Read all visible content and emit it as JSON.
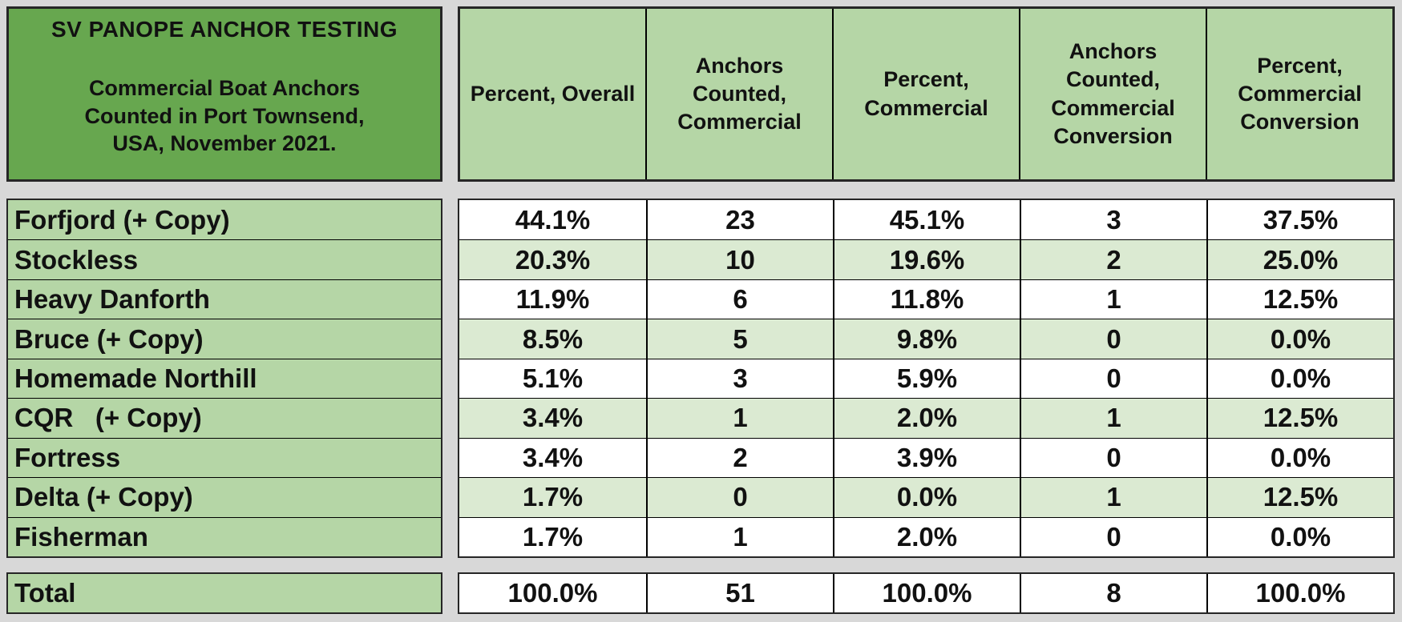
{
  "chart_data": {
    "type": "table",
    "title": "SV PANOPE ANCHOR TESTING",
    "subtitle_lines": [
      "Commercial Boat Anchors",
      "Counted in Port Townsend,",
      "USA, November 2021."
    ],
    "columns": [
      "Percent, Overall",
      "Anchors Counted, Commercial",
      "Percent, Commercial",
      "Anchors Counted, Commercial Conversion",
      "Percent, Commercial Conversion"
    ],
    "rows": [
      {
        "label": "Forfjord (+ Copy)",
        "values": [
          "44.1%",
          "23",
          "45.1%",
          "3",
          "37.5%"
        ]
      },
      {
        "label": "Stockless",
        "values": [
          "20.3%",
          "10",
          "19.6%",
          "2",
          "25.0%"
        ]
      },
      {
        "label": "Heavy Danforth",
        "values": [
          "11.9%",
          "6",
          "11.8%",
          "1",
          "12.5%"
        ]
      },
      {
        "label": "Bruce (+ Copy)",
        "values": [
          "8.5%",
          "5",
          "9.8%",
          "0",
          "0.0%"
        ]
      },
      {
        "label": "Homemade Northill",
        "values": [
          "5.1%",
          "3",
          "5.9%",
          "0",
          "0.0%"
        ]
      },
      {
        "label": "CQR   (+ Copy)",
        "values": [
          "3.4%",
          "1",
          "2.0%",
          "1",
          "12.5%"
        ]
      },
      {
        "label": "Fortress",
        "values": [
          "3.4%",
          "2",
          "3.9%",
          "0",
          "0.0%"
        ]
      },
      {
        "label": "Delta (+ Copy)",
        "values": [
          "1.7%",
          "0",
          "0.0%",
          "1",
          "12.5%"
        ]
      },
      {
        "label": "Fisherman",
        "values": [
          "1.7%",
          "1",
          "2.0%",
          "0",
          "0.0%"
        ]
      }
    ],
    "total": {
      "label": "Total",
      "values": [
        "100.0%",
        "51",
        "100.0%",
        "8",
        "100.0%"
      ]
    }
  },
  "colors": {
    "title_green": "#67a74f",
    "header_green": "#b5d6a6",
    "row_alt_green": "#dbead2",
    "row_white": "#ffffff",
    "background_gray": "#d8d8d8",
    "border_black": "#000000"
  }
}
